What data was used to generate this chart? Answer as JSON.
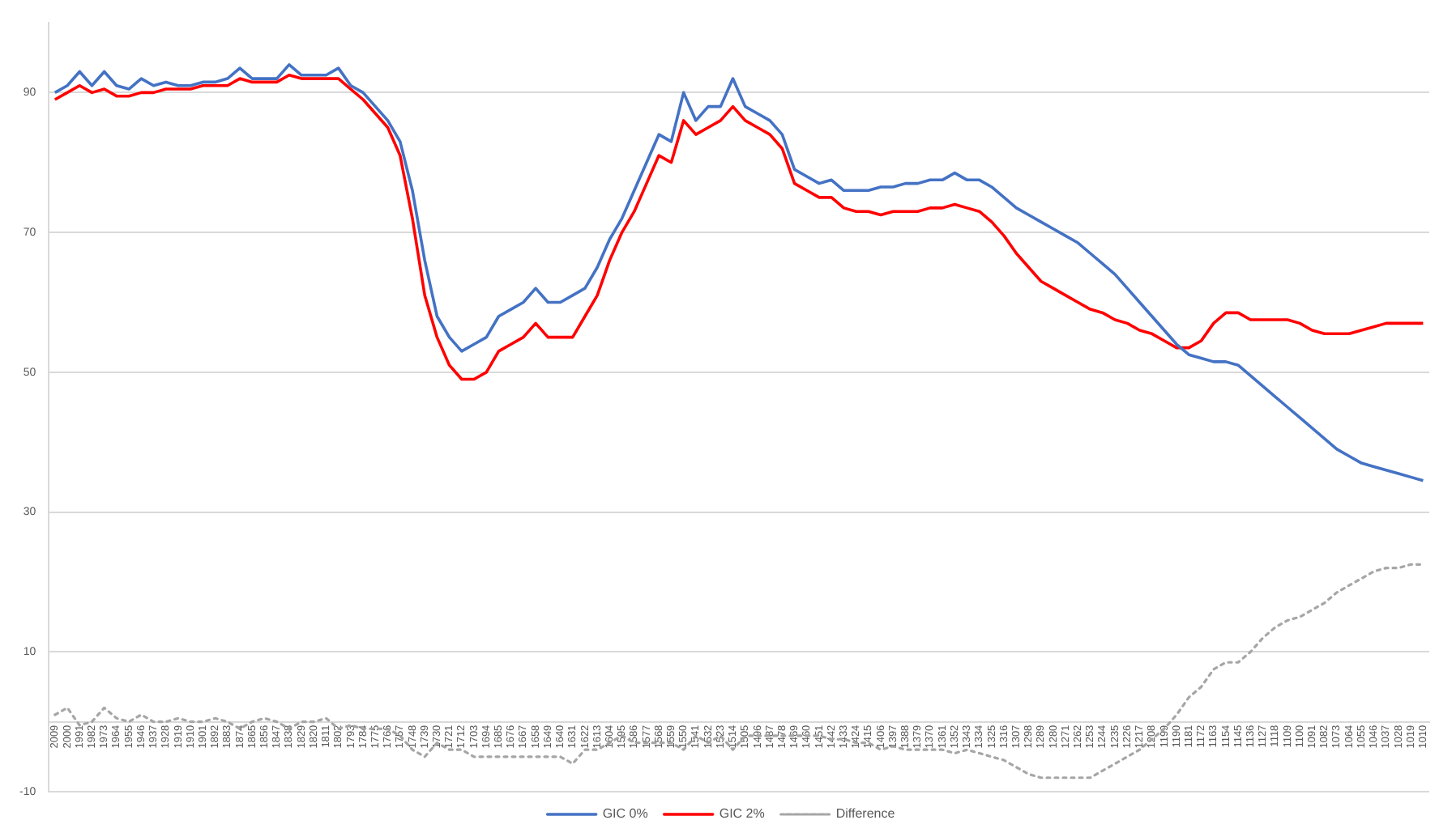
{
  "chart_data": {
    "type": "line",
    "categories": [
      "2009",
      "2000",
      "1991",
      "1982",
      "1973",
      "1964",
      "1955",
      "1946",
      "1937",
      "1928",
      "1919",
      "1910",
      "1901",
      "1892",
      "1883",
      "1874",
      "1865",
      "1856",
      "1847",
      "1838",
      "1829",
      "1820",
      "1811",
      "1802",
      "1793",
      "1784",
      "1775",
      "1766",
      "1757",
      "1748",
      "1739",
      "1730",
      "1721",
      "1712",
      "1703",
      "1694",
      "1685",
      "1676",
      "1667",
      "1658",
      "1649",
      "1640",
      "1631",
      "1622",
      "1613",
      "1604",
      "1595",
      "1586",
      "1577",
      "1568",
      "1559",
      "1550",
      "1541",
      "1532",
      "1523",
      "1514",
      "1505",
      "1496",
      "1487",
      "1478",
      "1469",
      "1460",
      "1451",
      "1442",
      "1433",
      "1424",
      "1415",
      "1406",
      "1397",
      "1388",
      "1379",
      "1370",
      "1361",
      "1352",
      "1343",
      "1334",
      "1325",
      "1316",
      "1307",
      "1298",
      "1289",
      "1280",
      "1271",
      "1262",
      "1253",
      "1244",
      "1235",
      "1226",
      "1217",
      "1208",
      "1199",
      "1190",
      "1181",
      "1172",
      "1163",
      "1154",
      "1145",
      "1136",
      "1127",
      "1118",
      "1109",
      "1100",
      "1091",
      "1082",
      "1073",
      "1064",
      "1055",
      "1046",
      "1037",
      "1028",
      "1019",
      "1010"
    ],
    "series": [
      {
        "name": "GIC 0%",
        "color": "#4472c4",
        "values": [
          90,
          91,
          93,
          91,
          93,
          91,
          90.5,
          92,
          91,
          91.5,
          91,
          91,
          91.5,
          91.5,
          92,
          93.5,
          92,
          92,
          92,
          94,
          92.5,
          92.5,
          92.5,
          93.5,
          91,
          90,
          88,
          86,
          83,
          76,
          66,
          58,
          55,
          53,
          54,
          55,
          58,
          59,
          60,
          62,
          60,
          60,
          61,
          62,
          65,
          69,
          72,
          76,
          80,
          84,
          83,
          90,
          86,
          88,
          88,
          92,
          88,
          87,
          86,
          84,
          79,
          78,
          77,
          77.5,
          76,
          76,
          76,
          76.5,
          76.5,
          77,
          77,
          77.5,
          77.5,
          78.5,
          77.5,
          77.5,
          76.5,
          75,
          73.5,
          72.5,
          71.5,
          70.5,
          69.5,
          68.5,
          67,
          65.5,
          64,
          62,
          60,
          58,
          56,
          54,
          52.5,
          52,
          51.5,
          51.5,
          51,
          49.5,
          48,
          46.5,
          45,
          43.5,
          42,
          40.5,
          39,
          38,
          37,
          36.5,
          36,
          35.5,
          35,
          34.5
        ]
      },
      {
        "name": "GIC 2%",
        "color": "#ff0000",
        "values": [
          89,
          90,
          91,
          90,
          90.5,
          89.5,
          89.5,
          90,
          90,
          90.5,
          90.5,
          90.5,
          91,
          91,
          91,
          92,
          91.5,
          91.5,
          91.5,
          92.5,
          92,
          92,
          92,
          92,
          90.5,
          89,
          87,
          85,
          81,
          72,
          61,
          55,
          51,
          49,
          49,
          50,
          53,
          54,
          55,
          57,
          55,
          55,
          55,
          58,
          61,
          66,
          70,
          73,
          77,
          81,
          80,
          86,
          84,
          85,
          86,
          88,
          86,
          85,
          84,
          82,
          77,
          76,
          75,
          75,
          73.5,
          73,
          73,
          72.5,
          73,
          73,
          73,
          73.5,
          73.5,
          74,
          73.5,
          73,
          71.5,
          69.5,
          67,
          65,
          63,
          62,
          61,
          60,
          59,
          58.5,
          57.5,
          57,
          56,
          55.5,
          54.5,
          53.5,
          53.5,
          54.5,
          57,
          58.5,
          58.5,
          57.5,
          57.5,
          57.5,
          57.5,
          57,
          56,
          55.5,
          55.5,
          55.5,
          56,
          56.5,
          57,
          57,
          57,
          57
        ]
      },
      {
        "name": "Difference",
        "color": "#a6a6a6",
        "line_style": "dotted",
        "values": [
          1,
          2,
          -0.5,
          0,
          2,
          0.5,
          0,
          1,
          0,
          0,
          0.5,
          0,
          0,
          0.5,
          0,
          -1,
          0,
          0.5,
          0,
          -1,
          0,
          0,
          0.5,
          -1,
          -0.5,
          -1,
          -1,
          -1,
          -2,
          -4,
          -5,
          -3,
          -4,
          -4,
          -5,
          -5,
          -5,
          -5,
          -5,
          -5,
          -5,
          -5,
          -6,
          -4,
          -4,
          -3,
          -2,
          -3,
          -3,
          -3,
          -3,
          -4,
          -2,
          -3,
          -2,
          -4,
          -2,
          -2,
          -2,
          -2,
          -2,
          -2,
          -2,
          -2.5,
          -2.5,
          -3,
          -3,
          -4,
          -3.5,
          -4,
          -4,
          -4,
          -4,
          -4.5,
          -4,
          -4.5,
          -5,
          -5.5,
          -6.5,
          -7.5,
          -8,
          -8,
          -8,
          -8,
          -8,
          -7,
          -6,
          -5,
          -4,
          -2.5,
          -1,
          1,
          3.5,
          5,
          7.5,
          8.5,
          8.5,
          10,
          12,
          13.5,
          14.5,
          15,
          16,
          17,
          18.5,
          19.5,
          20.5,
          21.5,
          22,
          22,
          22.5,
          22.5
        ]
      }
    ],
    "ylim": [
      -10,
      100
    ],
    "yticks": [
      -10,
      10,
      30,
      50,
      70,
      90
    ],
    "grid": "y",
    "legend": "bottom",
    "marker": "none",
    "line_style": "solid"
  }
}
